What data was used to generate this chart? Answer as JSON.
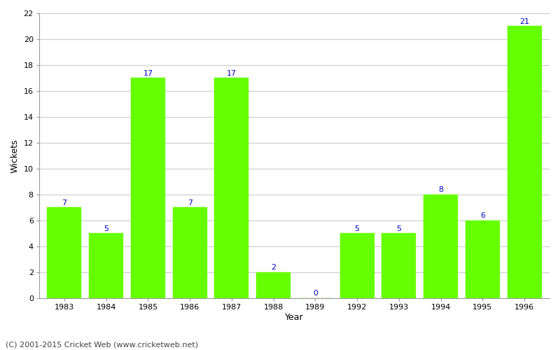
{
  "years": [
    "1983",
    "1984",
    "1985",
    "1986",
    "1987",
    "1988",
    "1989",
    "1992",
    "1993",
    "1994",
    "1995",
    "1996"
  ],
  "wickets": [
    7,
    5,
    17,
    7,
    17,
    2,
    0,
    5,
    5,
    8,
    6,
    21
  ],
  "bar_color": "#66ff00",
  "bar_edge_color": "#66ff00",
  "label_color": "#0000cc",
  "xlabel": "Year",
  "ylabel": "Wickets",
  "ylim": [
    0,
    22
  ],
  "yticks": [
    0,
    2,
    4,
    6,
    8,
    10,
    12,
    14,
    16,
    18,
    20,
    22
  ],
  "grid_color": "#cccccc",
  "background_color": "#ffffff",
  "footer_text": "(C) 2001-2015 Cricket Web (www.cricketweb.net)",
  "footer_color": "#444444",
  "label_fontsize": 8,
  "axis_label_fontsize": 9,
  "tick_fontsize": 8,
  "footer_fontsize": 8,
  "bar_width": 0.82
}
